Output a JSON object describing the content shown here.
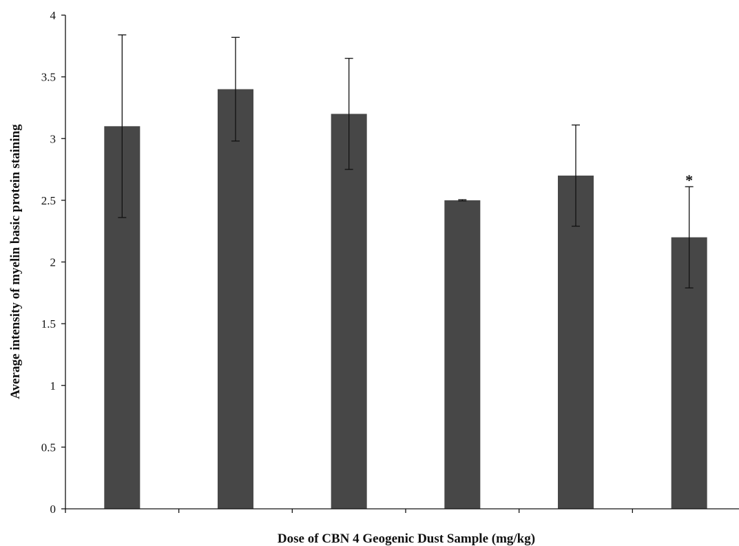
{
  "chart_data": {
    "type": "bar",
    "title": "",
    "xlabel": "Dose of CBN 4 Geogenic Dust Sample (mg/kg)",
    "ylabel": "Average intensity of myelin basic protein staining",
    "ylim": [
      0,
      4
    ],
    "yticks": [
      "0",
      "0.5",
      "1",
      "1.5",
      "2",
      "2.5",
      "3",
      "3.5",
      "4"
    ],
    "categories": [
      "",
      "",
      "",
      "",
      "",
      ""
    ],
    "values": [
      3.1,
      3.4,
      3.2,
      2.5,
      2.7,
      2.2
    ],
    "error_upper": [
      3.84,
      3.82,
      3.65,
      2.505,
      3.11,
      2.61
    ],
    "error_lower": [
      2.36,
      2.98,
      2.75,
      2.495,
      2.29,
      1.79
    ],
    "annotations": [
      {
        "category_index": 5,
        "text": "*"
      }
    ],
    "bar_color": "#474747",
    "grid": false,
    "legend": "none"
  }
}
